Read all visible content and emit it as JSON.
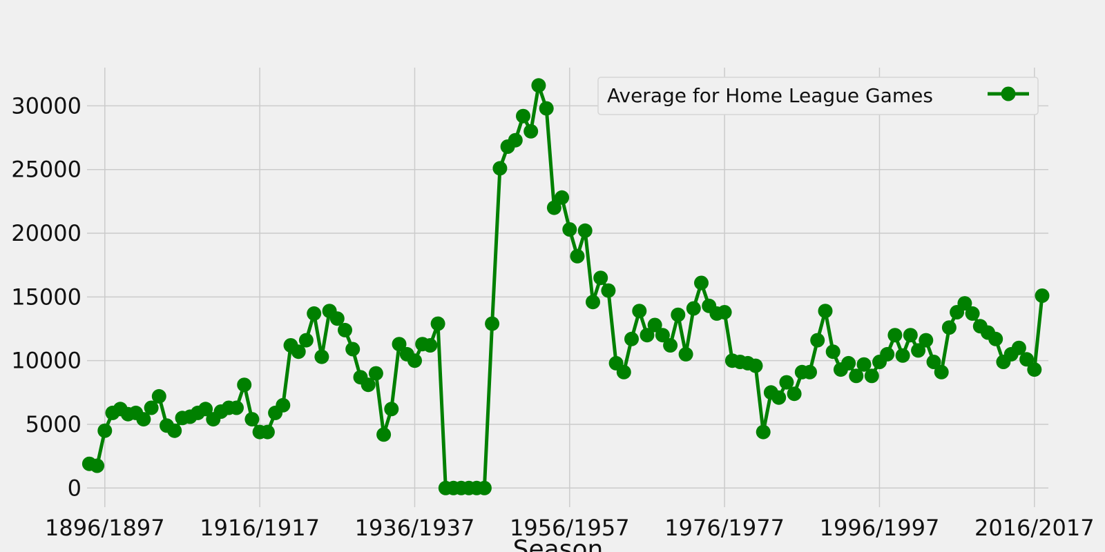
{
  "chart_data": {
    "type": "line",
    "title": "",
    "xlabel": "Season",
    "ylabel": "",
    "x_start_year": 1894,
    "x_tick_labels": [
      "1896/1897",
      "1916/1917",
      "1936/1937",
      "1956/1957",
      "1976/1977",
      "1996/1997",
      "2016/2017"
    ],
    "x_tick_years": [
      1896,
      1916,
      1936,
      1956,
      1976,
      1996,
      2016
    ],
    "xlim": [
      1893.7,
      2017.8
    ],
    "y_ticks": [
      0,
      5000,
      10000,
      15000,
      20000,
      25000,
      30000
    ],
    "y_tick_labels": [
      "0",
      "5000",
      "10000",
      "15000",
      "20000",
      "25000",
      "30000"
    ],
    "ylim": [
      -1500,
      33000
    ],
    "grid": true,
    "legend_position": "top-right",
    "series": [
      {
        "name": "Average for Home League Games",
        "color": "#008000",
        "values": [
          1900,
          1750,
          4500,
          5900,
          6200,
          5800,
          5900,
          5400,
          6300,
          7200,
          4900,
          4500,
          5500,
          5600,
          5900,
          6200,
          5400,
          6000,
          6300,
          6300,
          8100,
          5400,
          4400,
          4400,
          5900,
          6500,
          11200,
          10700,
          11600,
          13700,
          10300,
          13900,
          13300,
          12400,
          10900,
          8700,
          8100,
          9000,
          4200,
          6200,
          11300,
          10500,
          10000,
          11300,
          11200,
          12900,
          0,
          0,
          0,
          0,
          0,
          0,
          12900,
          25100,
          26800,
          27300,
          29200,
          28000,
          31600,
          29800,
          22000,
          22800,
          20300,
          18200,
          20200,
          14600,
          16500,
          15500,
          9800,
          9100,
          11700,
          13900,
          12000,
          12800,
          12000,
          11200,
          13600,
          10500,
          14100,
          16100,
          14300,
          13700,
          13800,
          10000,
          9900,
          9800,
          9600,
          4400,
          7500,
          7100,
          8300,
          7400,
          9100,
          9100,
          11600,
          13900,
          10700,
          9300,
          9800,
          8800,
          9700,
          8800,
          9900,
          10500,
          12000,
          10400,
          12000,
          10800,
          11600,
          9900,
          9100,
          12600,
          13800,
          14500,
          13700,
          12700,
          12200,
          11700,
          9900,
          10500,
          11000,
          10100,
          9300,
          15100
        ]
      }
    ]
  }
}
